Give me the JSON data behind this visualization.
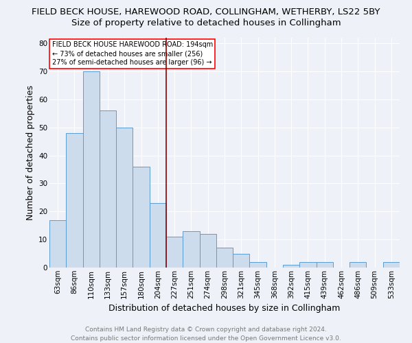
{
  "title": "FIELD BECK HOUSE, HAREWOOD ROAD, COLLINGHAM, WETHERBY, LS22 5BY",
  "subtitle": "Size of property relative to detached houses in Collingham",
  "xlabel": "Distribution of detached houses by size in Collingham",
  "ylabel": "Number of detached properties",
  "categories": [
    "63sqm",
    "86sqm",
    "110sqm",
    "133sqm",
    "157sqm",
    "180sqm",
    "204sqm",
    "227sqm",
    "251sqm",
    "274sqm",
    "298sqm",
    "321sqm",
    "345sqm",
    "368sqm",
    "392sqm",
    "415sqm",
    "439sqm",
    "462sqm",
    "486sqm",
    "509sqm",
    "533sqm"
  ],
  "values": [
    17,
    48,
    70,
    56,
    50,
    36,
    23,
    11,
    13,
    12,
    7,
    5,
    2,
    0,
    1,
    2,
    2,
    0,
    2,
    0,
    2
  ],
  "bar_color": "#ccdcec",
  "bar_edge_color": "#5b9bd5",
  "vline_x": 6.5,
  "vline_color": "#8b0000",
  "annotation_text": "FIELD BECK HOUSE HAREWOOD ROAD: 194sqm\n← 73% of detached houses are smaller (256)\n27% of semi-detached houses are larger (96) →",
  "ylim": [
    0,
    82
  ],
  "yticks": [
    0,
    10,
    20,
    30,
    40,
    50,
    60,
    70,
    80
  ],
  "footer": "Contains HM Land Registry data © Crown copyright and database right 2024.\nContains public sector information licensed under the Open Government Licence v3.0.",
  "bg_color": "#eef2f8",
  "grid_color": "#d0d8e8",
  "title_fontsize": 9.5,
  "subtitle_fontsize": 9.5,
  "axis_label_fontsize": 9,
  "tick_fontsize": 7.5,
  "annot_fontsize": 7,
  "footer_fontsize": 6.5
}
